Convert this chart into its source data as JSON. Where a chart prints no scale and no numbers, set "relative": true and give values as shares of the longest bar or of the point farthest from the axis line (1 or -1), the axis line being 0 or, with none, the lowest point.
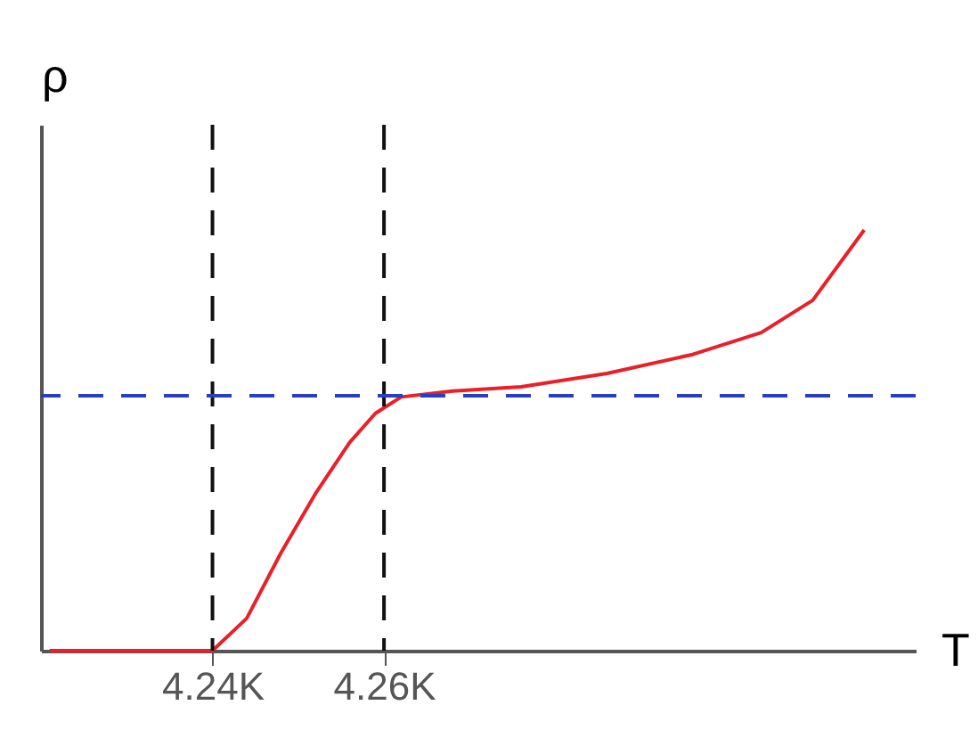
{
  "chart_data": {
    "type": "line",
    "xlabel": "T",
    "ylabel": "ρ",
    "relative": true,
    "xlim": [
      4.22,
      4.322
    ],
    "xticks": [
      {
        "value": 4.24,
        "label": "4.24K"
      },
      {
        "value": 4.26,
        "label": "4.26K"
      }
    ],
    "x": [
      4.221,
      4.24,
      4.244,
      4.248,
      4.252,
      4.256,
      4.259,
      4.262,
      4.268,
      4.276,
      4.286,
      4.296,
      4.304,
      4.31,
      4.316
    ],
    "series": [
      {
        "color": "#e8202a",
        "values": [
          0,
          0,
          0.077,
          0.233,
          0.373,
          0.495,
          0.564,
          0.603,
          0.617,
          0.627,
          0.659,
          0.704,
          0.756,
          0.833,
          1
        ]
      }
    ],
    "ref_lines": [
      {
        "axis": "x",
        "value": 4.24,
        "color": "#111111",
        "line_style": "dashed"
      },
      {
        "axis": "x",
        "value": 4.26,
        "color": "#111111",
        "line_style": "dashed"
      },
      {
        "axis": "y",
        "value": 0.606,
        "color": "#2a3fbf",
        "line_style": "dashed"
      }
    ],
    "grid": false
  }
}
